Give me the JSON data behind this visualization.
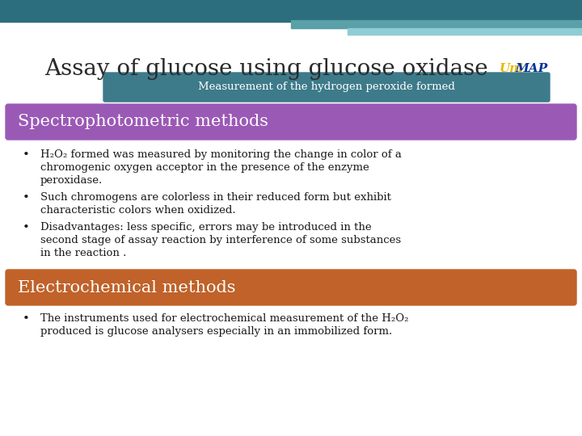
{
  "title": "Assay of glucose using glucose oxidase",
  "title_fontsize": 20,
  "title_color": "#2a2a2a",
  "bg_color": "#ffffff",
  "header_bar1_color": "#2d6e7e",
  "header_bar2_color": "#5aa0a8",
  "header_bar3_color": "#8ecdd5",
  "measurement_box_color": "#3d7a8a",
  "measurement_text": "Measurement of the hydrogen peroxide formed",
  "measurement_text_color": "#ffffff",
  "section1_bg": "#9b59b6",
  "section1_text": "Spectrophotometric methods",
  "section1_text_color": "#ffffff",
  "section2_bg": "#c0622a",
  "section2_text": "Electrochemical methods",
  "section2_text_color": "#ffffff",
  "bullet_color": "#1a1a1a",
  "font_family": "serif",
  "bullet_fs": 9.5,
  "section_fs": 15
}
